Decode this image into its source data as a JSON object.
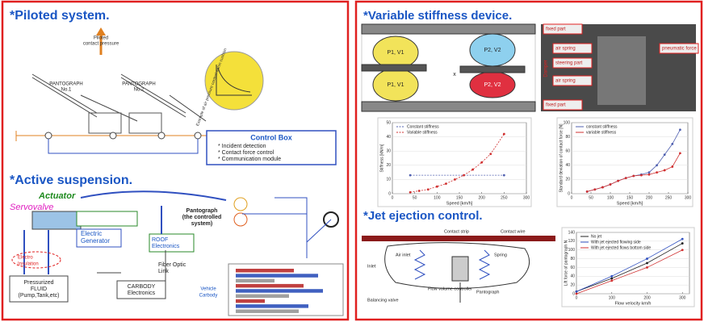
{
  "left_panel": {
    "piloted_system": {
      "title": "*Piloted system.",
      "pressure_label": [
        "Piloted",
        "contact pressure"
      ],
      "pantograph_1": [
        "PANTOGRAPH",
        "No.1"
      ],
      "pantograph_2": [
        "PANTOGRAPH",
        "No.2"
      ],
      "inset_label": "Example of air pressure control within cushion",
      "control_box": {
        "title": "Control Box",
        "items": [
          "* Incident detection",
          "* Contact force control",
          "* Communication module"
        ]
      }
    },
    "active_suspension": {
      "title": "*Active suspension.",
      "actuator": "Actuator",
      "servovalve": "Servovalve",
      "pantograph": [
        "Pantograph",
        "(the controlled",
        "system)"
      ],
      "generator": [
        "Electric",
        "Generator"
      ],
      "roof": [
        "ROOF",
        "Electronics"
      ],
      "fiber": [
        "Fiber Optic",
        "Link"
      ],
      "insulation": [
        "Electro",
        "Insulation"
      ],
      "fluid": [
        "Pressurized",
        "FLUID",
        "(Pump,Tank,etc)"
      ],
      "carbody": [
        "CARBODY",
        "Electronics"
      ],
      "vehicle": [
        "Vehicle",
        "Carbody"
      ],
      "inset_bars": {
        "values": [
          60,
          85,
          40,
          70,
          90,
          55,
          30,
          75,
          65
        ],
        "colors": [
          "#c04040",
          "#4060c0",
          "#a0a0a0",
          "#c04040",
          "#4060c0",
          "#a0a0a0",
          "#c04040",
          "#4060c0",
          "#a0a0a0"
        ]
      }
    }
  },
  "right_panel": {
    "variable_stiffness": {
      "title": "*Variable stiffness device.",
      "diagram": {
        "p1": "P1, V1",
        "p2": "P2, V2",
        "x": "x"
      },
      "photo": {
        "fixed_top": "fixed part",
        "air_spring_top": "air spring",
        "steering": "steering part",
        "air_spring_bottom": "air spring",
        "fixed_bottom": "fixed part",
        "force": "pneumatic force",
        "damper": "Damper"
      },
      "stiffness_chart": {
        "type": "line",
        "xlabel": "Speed [km/h]",
        "ylabel": "Stiffness [kN/m]",
        "xlim": [
          0,
          300
        ],
        "ylim": [
          0,
          50
        ],
        "xticks": [
          0,
          50,
          100,
          150,
          200,
          250,
          300
        ],
        "yticks": [
          0,
          10,
          20,
          30,
          40,
          50
        ],
        "legend": "top-left",
        "series": [
          {
            "name": "Constant stiffness",
            "color": "#5060b0",
            "dash": true,
            "x": [
              40,
              250
            ],
            "values": [
              13,
              13
            ]
          },
          {
            "name": "Variable stiffness",
            "color": "#d03030",
            "dash": true,
            "x": [
              40,
              60,
              80,
              100,
              120,
              140,
              160,
              180,
              200,
              220,
              250
            ],
            "values": [
              1,
              2,
              3,
              5,
              7,
              10,
              13,
              17,
              22,
              28,
              42
            ]
          }
        ]
      },
      "force_chart": {
        "type": "line",
        "xlabel": "Speed [km/h]",
        "ylabel": "Standard deviation of contact force [N]",
        "xlim": [
          0,
          300
        ],
        "ylim": [
          0,
          100
        ],
        "xticks": [
          0,
          50,
          100,
          150,
          200,
          250,
          300
        ],
        "yticks": [
          0,
          20,
          40,
          60,
          80,
          100
        ],
        "legend": "top-left",
        "series": [
          {
            "name": "constant stiffness",
            "color": "#5060b0",
            "dash": false,
            "x": [
              40,
              60,
              80,
              100,
              120,
              140,
              160,
              180,
              200,
              220,
              240,
              260,
              280
            ],
            "values": [
              3,
              6,
              9,
              13,
              18,
              22,
              25,
              27,
              30,
              40,
              55,
              70,
              90
            ]
          },
          {
            "name": "variable stiffness",
            "color": "#d03030",
            "dash": false,
            "x": [
              40,
              60,
              80,
              100,
              120,
              140,
              160,
              180,
              200,
              220,
              240,
              260,
              280
            ],
            "values": [
              3,
              6,
              9,
              13,
              18,
              22,
              25,
              26,
              27,
              30,
              33,
              38,
              57
            ]
          }
        ]
      }
    },
    "jet_ejection": {
      "title": "*Jet ejection control.",
      "diagram": {
        "strip": "Contact strip",
        "wire": "Contact wire",
        "air_inlet": "Air inlet",
        "spring": "Spring",
        "inlet": "Inlet",
        "controller": "Flow volume controller",
        "valve": "Balancing valve",
        "pantograph": "Pantograph"
      },
      "uplift_chart": {
        "type": "line",
        "xlabel": "Flow velocity  km/h",
        "ylabel": "Lift force of pantograph  N",
        "xlim": [
          0,
          320
        ],
        "ylim": [
          0,
          140
        ],
        "xticks": [
          0,
          100,
          200,
          300
        ],
        "yticks": [
          0,
          20,
          40,
          60,
          80,
          100,
          120,
          140
        ],
        "legend": "top-left",
        "series": [
          {
            "name": "No jet",
            "color": "#202020",
            "dash": false,
            "x": [
              0,
              100,
              200,
              300
            ],
            "values": [
              5,
              35,
              70,
              115
            ]
          },
          {
            "name": "With jet ejected flowing side",
            "color": "#3050c0",
            "dash": false,
            "x": [
              0,
              100,
              200,
              300
            ],
            "values": [
              5,
              40,
              80,
              125
            ]
          },
          {
            "name": "With jet ejected flows bottom side",
            "color": "#d03030",
            "dash": false,
            "x": [
              0,
              100,
              200,
              300
            ],
            "values": [
              0,
              30,
              60,
              100
            ]
          }
        ]
      }
    }
  }
}
